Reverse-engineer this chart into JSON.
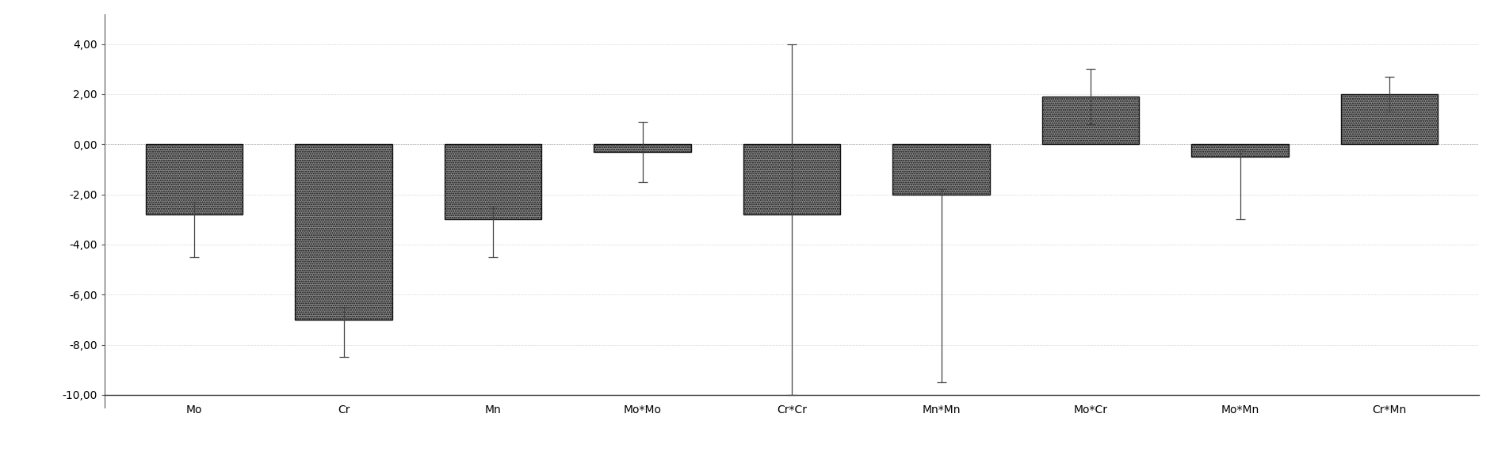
{
  "categories": [
    "Mo",
    "Cr",
    "Mn",
    "Mo*Mo",
    "Cr*Cr",
    "Mn*Mn",
    "Mo*Cr",
    "Mo*Mn",
    "Cr*Mn"
  ],
  "values": [
    -2.8,
    -7.0,
    -3.0,
    -0.3,
    -2.8,
    -2.0,
    1.9,
    -0.5,
    2.0
  ],
  "error_low": [
    1.7,
    1.5,
    1.5,
    1.2,
    7.2,
    7.5,
    1.1,
    2.5,
    0.7
  ],
  "error_high": [
    0.5,
    0.5,
    0.5,
    1.2,
    6.8,
    0.2,
    1.1,
    0.3,
    0.7
  ],
  "bar_color": "#888888",
  "bar_edgecolor": "#111111",
  "ylim": [
    -10.5,
    5.2
  ],
  "yticks": [
    -10.0,
    -8.0,
    -6.0,
    -4.0,
    -2.0,
    0.0,
    2.0,
    4.0
  ],
  "yticklabels": [
    "-10,00",
    "-8,00",
    "-6,00",
    "-4,00",
    "-2,00",
    "0,00",
    "2,00",
    "4,00"
  ],
  "background_color": "#ffffff",
  "grid_color": "#bbbbbb",
  "bar_width": 0.65,
  "figsize": [
    18.85,
    5.85
  ],
  "dpi": 100,
  "tick_fontsize": 10,
  "xlabel_fontsize": 11
}
